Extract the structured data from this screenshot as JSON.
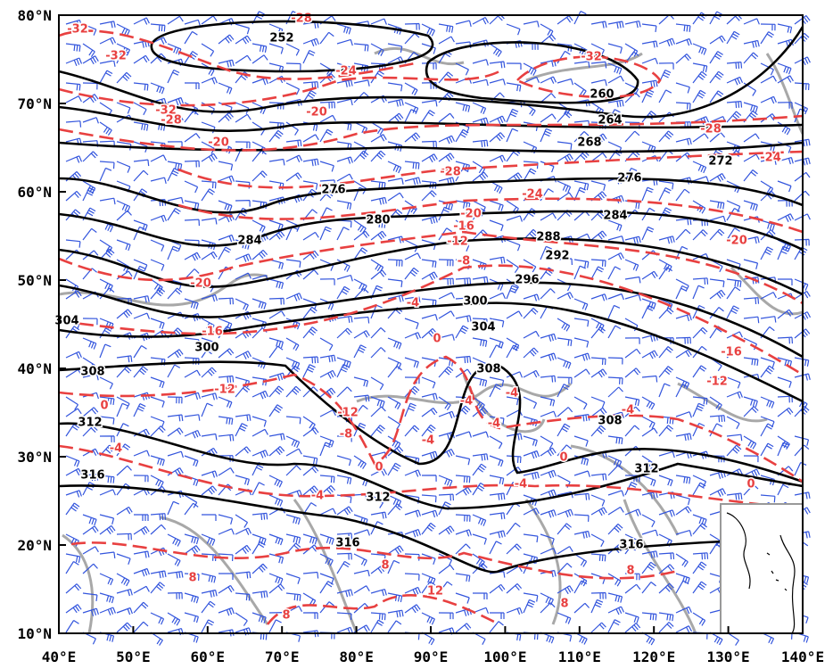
{
  "map": {
    "xticks": [
      "40°E",
      "50°E",
      "60°E",
      "70°E",
      "80°E",
      "90°E",
      "100°E",
      "110°E",
      "120°E",
      "130°E",
      "140°E"
    ],
    "yticks": [
      "80°N",
      "70°N",
      "60°N",
      "50°N",
      "40°N",
      "30°N",
      "20°N",
      "10°N"
    ],
    "height_contour_labels": [
      252,
      260,
      264,
      268,
      272,
      276,
      276,
      280,
      284,
      284,
      288,
      292,
      296,
      300,
      300,
      304,
      304,
      308,
      308,
      308,
      312,
      312,
      312,
      316,
      316,
      316
    ],
    "temperature_contour_labels": [
      -32,
      -28,
      -32,
      -24,
      -32,
      -32,
      -28,
      -20,
      -20,
      -28,
      -24,
      -28,
      -24,
      -20,
      -16,
      -12,
      -8,
      -20,
      -20,
      -16,
      -4,
      0,
      -16,
      -12,
      -12,
      0,
      -4,
      -4,
      -4,
      -12,
      -8,
      -4,
      -4,
      0,
      0,
      -4,
      0,
      -4,
      -4,
      8,
      8,
      8,
      12,
      8,
      8
    ]
  }
}
